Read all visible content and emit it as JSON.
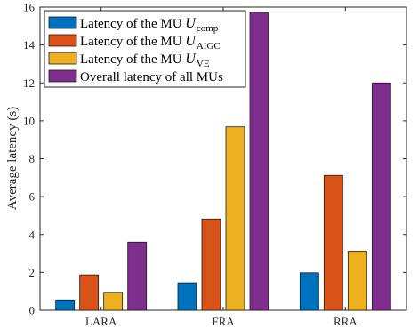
{
  "chart_data": {
    "type": "bar",
    "categories": [
      "LARA",
      "FRA",
      "RRA"
    ],
    "series": [
      {
        "name": "Latency of the MU U_comp",
        "color": "#0072BD",
        "values": [
          0.55,
          1.45,
          1.98
        ]
      },
      {
        "name": "Latency of the MU U_AIGC",
        "color": "#D95319",
        "values": [
          1.87,
          4.82,
          7.12
        ]
      },
      {
        "name": "Latency of the MU U_VE",
        "color": "#EDB120",
        "values": [
          0.95,
          9.68,
          3.12
        ]
      },
      {
        "name": "Overall latency of all MUs",
        "color": "#7E2F8E",
        "values": [
          3.6,
          15.72,
          12.0
        ]
      }
    ],
    "legend": [
      {
        "prefix": "Latency of the MU ",
        "var": "U",
        "sub": "comp"
      },
      {
        "prefix": "Latency of the MU ",
        "var": "U",
        "sub": "AIGC"
      },
      {
        "prefix": "Latency of the MU ",
        "var": "U",
        "sub": "VE"
      },
      {
        "prefix": "Overall latency of all MUs",
        "var": "",
        "sub": ""
      }
    ],
    "title": "",
    "xlabel": "",
    "ylabel": "Average latency (s)",
    "ylim": [
      0,
      16
    ],
    "yticks": [
      0,
      2,
      4,
      6,
      8,
      10,
      12,
      14,
      16
    ],
    "legend_position": "top-left",
    "grid": false
  }
}
